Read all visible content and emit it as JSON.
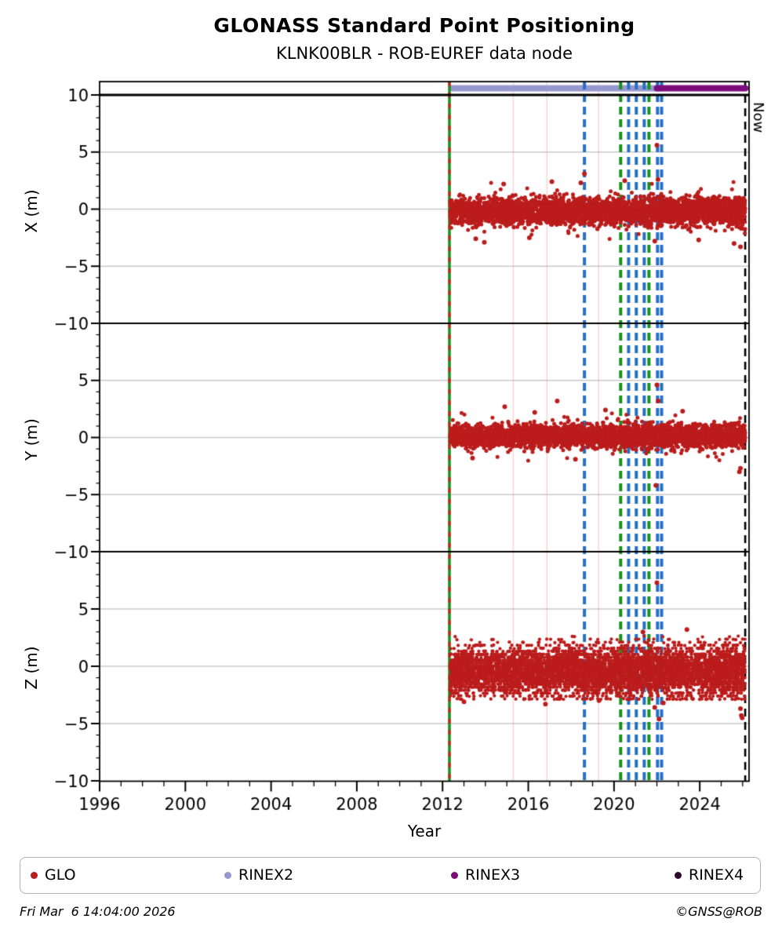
{
  "header": {
    "title": "GLONASS Standard Point Positioning",
    "subtitle": "KLNK00BLR - ROB-EUREF data node"
  },
  "footer": {
    "timestamp": "Fri Mar  6 14:04:00 2026",
    "credit": "©GNSS@ROB"
  },
  "legend": {
    "items": [
      {
        "label": "GLO",
        "color": "#bb1c1c"
      },
      {
        "label": "RINEX2",
        "color": "#9898d0"
      },
      {
        "label": "RINEX3",
        "color": "#7c0c7c"
      },
      {
        "label": "RINEX4",
        "color": "#2e0b2e"
      }
    ]
  },
  "chart_data": {
    "type": "scatter",
    "title": "GLONASS Standard Point Positioning",
    "subtitle": "KLNK00BLR - ROB-EUREF data node",
    "xlabel": "Year",
    "x_range": [
      1996.0,
      2026.3
    ],
    "x_major_ticks": [
      1996,
      2000,
      2004,
      2008,
      2012,
      2016,
      2020,
      2024
    ],
    "x_minor_step": 1,
    "grid": "horizontal-only",
    "panels": [
      {
        "key": "X",
        "ylabel": "X (m)",
        "ylim": [
          -10,
          11.3
        ],
        "ytick_labels": [
          10,
          5,
          0,
          -5,
          -10
        ]
      },
      {
        "key": "Y",
        "ylabel": "Y (m)",
        "ylim": [
          -10,
          10
        ],
        "ytick_labels": [
          5,
          0,
          -5,
          -10
        ]
      },
      {
        "key": "Z",
        "ylabel": "Z (m)",
        "ylim": [
          -10,
          10
        ],
        "ytick_labels": [
          5,
          0,
          -5,
          -10
        ]
      }
    ],
    "series": {
      "name": "GLO",
      "color": "#bb1c1c",
      "start_year": 2012.35,
      "end_year": 2026.12,
      "bands": {
        "X": {
          "center": -0.2,
          "sd": 0.5,
          "tail_sd": 0.85,
          "tail_prob": 0.05,
          "clamp": 2.4
        },
        "Y": {
          "center": 0.15,
          "sd": 0.42,
          "tail_sd": 0.75,
          "tail_prob": 0.05,
          "clamp": 2.2
        },
        "Z": {
          "center": -0.4,
          "sd": 0.95,
          "tail_sd": 1.3,
          "tail_prob": 0.03,
          "clamp": 2.55,
          "quantize": 0.26
        }
      },
      "outliers": {
        "X": [
          [
            2018.62,
            3.1
          ],
          [
            2018.45,
            2.3
          ],
          [
            2022.0,
            5.6
          ],
          [
            2022.05,
            2.6
          ],
          [
            2013.55,
            -2.6
          ],
          [
            2013.95,
            -2.9
          ],
          [
            2016.05,
            -2.5
          ],
          [
            2021.9,
            -2.8
          ],
          [
            2023.95,
            -2.7
          ],
          [
            2025.6,
            -3.0
          ],
          [
            2025.9,
            -3.3
          ],
          [
            2014.85,
            2.2
          ],
          [
            2017.1,
            2.4
          ],
          [
            2020.5,
            2.5
          ]
        ],
        "Y": [
          [
            2017.35,
            3.2
          ],
          [
            2014.9,
            2.7
          ],
          [
            2022.0,
            4.6
          ],
          [
            2022.06,
            3.2
          ],
          [
            2021.95,
            -4.2
          ],
          [
            2018.2,
            -1.9
          ],
          [
            2025.9,
            -2.7
          ],
          [
            2025.85,
            -3.0
          ],
          [
            2016.3,
            2.2
          ],
          [
            2019.6,
            2.4
          ],
          [
            2023.2,
            2.3
          ],
          [
            2013.4,
            -1.8
          ]
        ],
        "Z": [
          [
            2022.0,
            7.3
          ],
          [
            2021.35,
            3.0
          ],
          [
            2023.4,
            3.2
          ],
          [
            2025.98,
            -4.5
          ],
          [
            2022.1,
            -4.6
          ],
          [
            2021.9,
            -3.6
          ],
          [
            2025.9,
            -3.7
          ],
          [
            2025.94,
            -4.3
          ],
          [
            2013.0,
            -3.1
          ],
          [
            2016.8,
            -3.3
          ],
          [
            2019.3,
            -3.0
          ],
          [
            2022.3,
            -3.2
          ]
        ]
      }
    },
    "events": [
      {
        "year": 2012.32,
        "color": "#179117",
        "style": "solid",
        "overlay": {
          "color": "#cc2020",
          "style": "dashed"
        },
        "name": "data-start-line"
      },
      {
        "year": 2018.62,
        "color": "#2470c2",
        "style": "dashed"
      },
      {
        "year": 2020.31,
        "color": "#179117",
        "style": "dashed"
      },
      {
        "year": 2020.68,
        "color": "#2470c2",
        "style": "dashed"
      },
      {
        "year": 2021.04,
        "color": "#2470c2",
        "style": "dashed"
      },
      {
        "year": 2021.41,
        "color": "#2470c2",
        "style": "dashed"
      },
      {
        "year": 2021.63,
        "color": "#179117",
        "style": "dashed"
      },
      {
        "year": 2022.03,
        "color": "#2470c2",
        "style": "dashed"
      },
      {
        "year": 2022.22,
        "color": "#2470c2",
        "style": "dashed"
      }
    ],
    "gap_lines": {
      "years": [
        2015.3,
        2016.87,
        2019.28
      ],
      "color": "rgba(235,130,130,0.35)"
    },
    "availability_bars": [
      {
        "label": "RINEX2",
        "start": 2012.45,
        "end": 2022.15,
        "color": "#9898d0"
      },
      {
        "label": "RINEX3",
        "start": 2022.0,
        "end": 2026.12,
        "color": "#7c0c7c"
      }
    ],
    "now_line": {
      "year": 2026.12,
      "label": "Now",
      "color": "#000000",
      "style": "dashed"
    }
  }
}
